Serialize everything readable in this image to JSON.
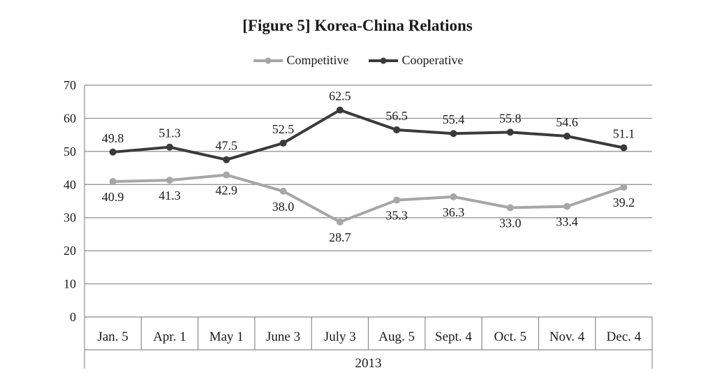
{
  "chart_data": {
    "type": "line",
    "title": "[Figure 5] Korea-China Relations",
    "categories": [
      "Jan. 5",
      "Apr. 1",
      "May 1",
      "June 3",
      "July 3",
      "Aug. 5",
      "Sept. 4",
      "Oct. 5",
      "Nov. 4",
      "Dec. 4"
    ],
    "xlabel": "2013",
    "ylabel": "",
    "ylim": [
      0,
      70
    ],
    "yticks": [
      0,
      10,
      20,
      30,
      40,
      50,
      60,
      70
    ],
    "grid": true,
    "legend_position": "top-center",
    "series": [
      {
        "name": "Competitive",
        "color": "#a6a6a6",
        "values": [
          40.9,
          41.3,
          42.9,
          38.0,
          28.7,
          35.3,
          36.3,
          33.0,
          33.4,
          39.2
        ],
        "labels": [
          "40.9",
          "41.3",
          "42.9",
          "38.0",
          "28.7",
          "35.3",
          "36.3",
          "33.0",
          "33.4",
          "39.2"
        ]
      },
      {
        "name": "Cooperative",
        "color": "#3a3a3a",
        "values": [
          49.8,
          51.3,
          47.5,
          52.5,
          62.5,
          56.5,
          55.4,
          55.8,
          54.6,
          51.1
        ],
        "labels": [
          "49.8",
          "51.3",
          "47.5",
          "52.5",
          "62.5",
          "56.5",
          "55.4",
          "55.8",
          "54.6",
          "51.1"
        ]
      }
    ]
  }
}
